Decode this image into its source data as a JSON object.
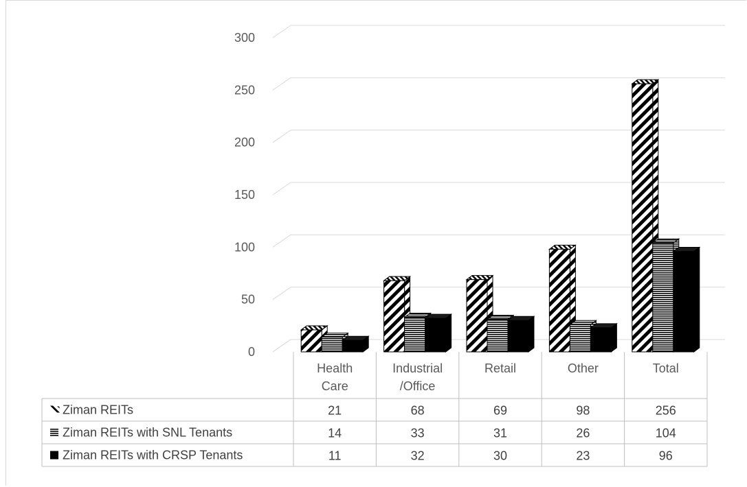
{
  "chart_data": {
    "type": "bar",
    "title": "",
    "xlabel": "",
    "ylabel": "",
    "ylim": [
      0,
      300
    ],
    "yticks": [
      0,
      50,
      100,
      150,
      200,
      250,
      300
    ],
    "categories": [
      "Health Care",
      "Industrial /Office",
      "Retail",
      "Other",
      "Total"
    ],
    "category_lines": [
      [
        "Health",
        "Care"
      ],
      [
        "Industrial",
        "/Office"
      ],
      [
        "Retail"
      ],
      [
        "Other"
      ],
      [
        "Total"
      ]
    ],
    "series": [
      {
        "name": "Ziman REITs",
        "values": [
          21,
          68,
          69,
          98,
          256
        ],
        "pattern": "diagonal-stripes"
      },
      {
        "name": "Ziman REITs with SNL Tenants",
        "values": [
          14,
          33,
          31,
          26,
          104
        ],
        "pattern": "horizontal-stripes"
      },
      {
        "name": "Ziman REITs with CRSP Tenants",
        "values": [
          11,
          32,
          30,
          23,
          96
        ],
        "pattern": "solid"
      }
    ],
    "data_table": true,
    "grid": true,
    "colors": {
      "gridline": "#d9d9d9",
      "bar_dark": "#000000",
      "bar_light": "#ffffff",
      "table_border": "#bfbfbf"
    }
  }
}
